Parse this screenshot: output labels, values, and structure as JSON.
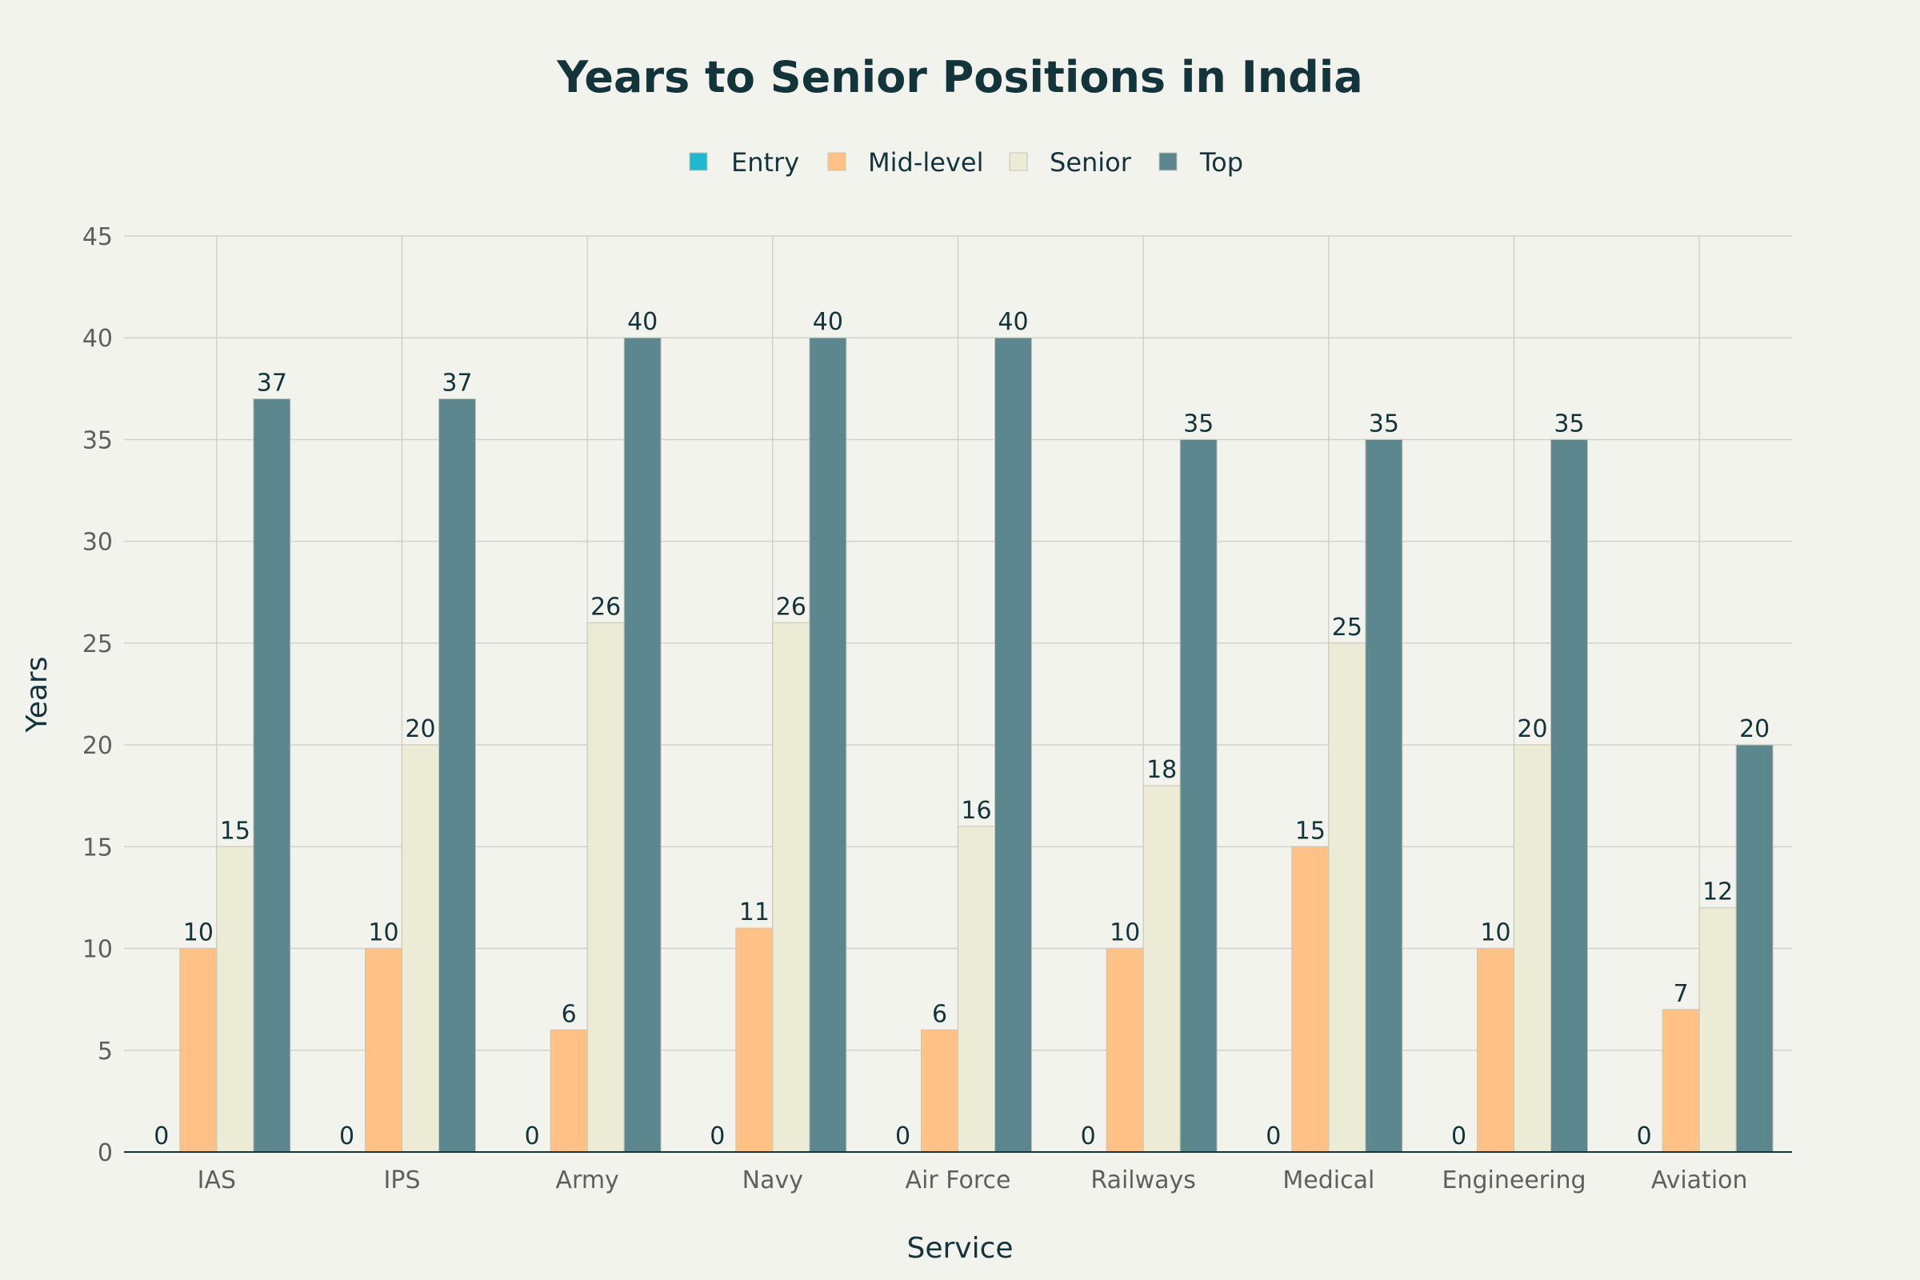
{
  "chart_data": {
    "type": "bar",
    "title": "Years to Senior Positions in India",
    "xlabel": "Service",
    "ylabel": "Years",
    "ylim": [
      0,
      45
    ],
    "yticks": [
      "0",
      "5",
      "10",
      "15",
      "20",
      "25",
      "30",
      "35",
      "40",
      "45"
    ],
    "grid": true,
    "legend_position": "top-center",
    "categories": [
      "IAS",
      "IPS",
      "Army",
      "Navy",
      "Air Force",
      "Railways",
      "Medical",
      "Engineering",
      "Aviation"
    ],
    "series": [
      {
        "name": "Entry",
        "color": "#1fb8cd",
        "values": [
          0,
          0,
          0,
          0,
          0,
          0,
          0,
          0,
          0
        ]
      },
      {
        "name": "Mid-level",
        "color": "#ffc185",
        "values": [
          10,
          10,
          6,
          11,
          6,
          10,
          15,
          10,
          7
        ]
      },
      {
        "name": "Senior",
        "color": "#ecebd5",
        "values": [
          15,
          20,
          26,
          26,
          16,
          18,
          25,
          20,
          12
        ]
      },
      {
        "name": "Top",
        "color": "#5d878f",
        "values": [
          37,
          37,
          40,
          40,
          40,
          35,
          35,
          35,
          20
        ]
      }
    ]
  }
}
